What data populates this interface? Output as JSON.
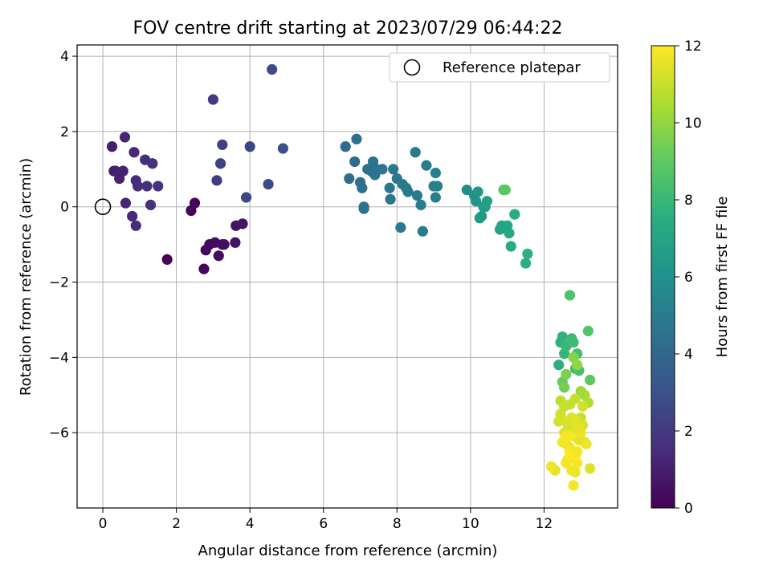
{
  "chart_data": {
    "type": "scatter",
    "title": "FOV centre drift starting at 2023/07/29 06:44:22",
    "xlabel": "Angular distance from reference (arcmin)",
    "ylabel": "Rotation from reference (arcmin)",
    "xlim": [
      -0.7,
      14.0
    ],
    "ylim": [
      -8.0,
      4.3
    ],
    "xticks": [
      0,
      2,
      4,
      6,
      8,
      10,
      12
    ],
    "yticks": [
      -6,
      -4,
      -2,
      0,
      2,
      4
    ],
    "grid": true,
    "legend": {
      "position": "top-right",
      "entries": [
        "Reference platepar"
      ]
    },
    "colorbar": {
      "label": "Hours from first FF file",
      "colormap": "viridis",
      "range": [
        0,
        12
      ],
      "ticks": [
        0,
        2,
        4,
        6,
        8,
        10,
        12
      ]
    },
    "reference_point": {
      "x": 0,
      "y": 0,
      "label": "Reference platepar"
    },
    "series": [
      {
        "x": [
          1.75,
          2.4,
          2.5,
          2.75,
          2.8,
          2.9,
          3.05,
          3.15,
          3.25,
          3.3,
          3.6,
          3.62,
          3.8,
          0.25,
          0.3,
          0.35,
          0.45,
          0.55,
          0.6,
          0.62,
          0.8,
          0.85,
          0.9,
          0.9,
          0.95,
          1.15,
          1.2,
          1.3,
          1.35,
          1.5,
          3.0,
          3.1,
          3.2,
          3.25,
          3.9,
          4.0,
          4.5,
          4.6,
          4.9,
          6.6,
          6.7,
          6.85,
          6.9,
          7.0,
          7.05,
          7.1,
          7.1,
          7.2,
          7.3,
          7.35,
          7.4,
          7.45,
          7.6,
          7.8,
          7.82,
          7.9,
          8.0,
          8.1,
          8.15,
          8.25,
          8.3,
          8.5,
          8.55,
          8.65,
          8.7,
          8.8,
          9.0,
          9.05,
          9.05,
          9.1,
          9.9,
          10.1,
          10.15,
          10.2,
          10.25,
          10.3,
          10.35,
          10.4,
          10.45,
          10.8,
          10.85,
          10.9,
          10.95,
          11.0,
          11.05,
          11.1,
          11.2,
          11.5,
          11.55,
          12.4,
          12.45,
          12.5,
          12.55,
          12.6,
          12.7,
          12.75,
          12.8,
          12.85,
          12.9,
          12.95,
          13.2,
          13.25,
          12.5,
          12.55,
          12.6,
          12.8,
          12.9,
          13.0,
          13.1,
          13.2,
          12.45,
          12.7,
          12.85,
          12.3,
          12.4,
          12.5,
          12.55,
          12.6,
          12.65,
          12.7,
          12.75,
          12.8,
          12.85,
          12.9,
          12.95,
          13.0,
          13.05,
          13.1,
          13.15,
          13.25,
          12.5,
          12.6,
          12.7,
          12.8,
          12.9,
          13.0,
          12.45,
          12.55,
          12.65,
          12.75,
          12.85,
          12.95,
          13.05,
          12.2,
          12.8,
          12.6,
          12.7,
          12.9,
          12.75,
          12.85
        ],
        "y": [
          -1.4,
          -0.1,
          0.1,
          -1.65,
          -1.15,
          -1.0,
          -0.95,
          -1.3,
          -1.0,
          -1.0,
          -0.95,
          -0.5,
          -0.45,
          1.6,
          0.95,
          0.95,
          0.75,
          0.95,
          1.85,
          0.1,
          -0.25,
          1.45,
          0.7,
          -0.5,
          0.55,
          1.25,
          0.55,
          0.05,
          1.15,
          0.55,
          2.85,
          0.7,
          1.15,
          1.65,
          0.25,
          1.6,
          0.6,
          3.65,
          1.55,
          1.6,
          0.75,
          1.2,
          1.8,
          0.65,
          0.5,
          -0.05,
          0.0,
          1.0,
          0.95,
          1.2,
          0.85,
          1.0,
          1.0,
          0.5,
          0.2,
          1.0,
          0.75,
          -0.55,
          0.6,
          0.5,
          0.4,
          1.45,
          0.3,
          0.05,
          -0.65,
          1.1,
          0.55,
          0.9,
          0.25,
          0.55,
          0.45,
          0.3,
          0.15,
          0.4,
          -0.3,
          -0.25,
          0.0,
          0.0,
          0.15,
          -0.6,
          -0.5,
          0.45,
          0.45,
          -0.5,
          -0.7,
          -1.05,
          -0.2,
          -1.5,
          -1.25,
          -4.2,
          -3.6,
          -3.45,
          -3.9,
          -3.7,
          -2.35,
          -3.5,
          -3.6,
          -4.3,
          -3.9,
          -4.35,
          -3.3,
          -4.6,
          -4.65,
          -4.8,
          -4.45,
          -4.0,
          -4.2,
          -4.9,
          -5.0,
          -5.2,
          -5.15,
          -5.25,
          -5.1,
          -7.0,
          -5.7,
          -5.65,
          -6.0,
          -6.3,
          -6.7,
          -6.4,
          -5.9,
          -6.1,
          -6.6,
          -5.9,
          -6.2,
          -5.6,
          -5.8,
          -6.25,
          -6.3,
          -6.95,
          -6.25,
          -6.8,
          -6.5,
          -6.5,
          -6.5,
          -6.0,
          -5.5,
          -5.3,
          -5.8,
          -5.6,
          -5.7,
          -5.9,
          -5.3,
          -6.9,
          -7.4,
          -6.1,
          -6.6,
          -6.8,
          -7.0,
          -7.05
        ],
        "hours": [
          0.05,
          0.1,
          0.15,
          0.2,
          0.25,
          0.3,
          0.35,
          0.4,
          0.45,
          0.5,
          0.55,
          0.6,
          0.65,
          1.0,
          1.05,
          1.1,
          1.15,
          1.2,
          1.25,
          1.3,
          1.35,
          1.4,
          1.45,
          1.5,
          1.55,
          1.6,
          1.65,
          1.7,
          1.75,
          1.8,
          2.1,
          2.2,
          2.3,
          2.4,
          2.5,
          2.6,
          2.7,
          2.8,
          2.9,
          4.2,
          4.3,
          4.3,
          4.35,
          4.4,
          4.4,
          4.45,
          4.5,
          4.5,
          4.55,
          4.6,
          4.6,
          4.65,
          4.7,
          4.7,
          4.75,
          4.8,
          4.8,
          4.85,
          4.9,
          4.9,
          4.95,
          5.0,
          5.0,
          5.05,
          5.1,
          5.1,
          5.15,
          5.2,
          5.2,
          5.25,
          6.0,
          6.1,
          6.2,
          6.3,
          6.4,
          6.5,
          6.6,
          6.7,
          6.8,
          7.0,
          7.1,
          8.8,
          9.0,
          7.2,
          7.3,
          7.4,
          7.5,
          7.6,
          7.7,
          7.6,
          7.7,
          7.8,
          7.9,
          8.0,
          8.6,
          8.1,
          8.2,
          8.3,
          8.4,
          8.5,
          8.8,
          9.0,
          9.2,
          9.4,
          9.6,
          9.8,
          10.0,
          10.2,
          10.4,
          10.6,
          10.8,
          11.0,
          10.9,
          11.6,
          11.2,
          11.3,
          11.4,
          11.5,
          11.6,
          11.7,
          11.8,
          11.9,
          12.0,
          11.4,
          11.6,
          11.1,
          11.3,
          11.5,
          11.7,
          11.4,
          11.8,
          11.9,
          12.0,
          11.9,
          11.8,
          11.7,
          11.2,
          11.0,
          11.3,
          11.4,
          11.5,
          11.6,
          11.2,
          11.7,
          11.8,
          11.9,
          12.0,
          11.9,
          11.8,
          11.7
        ]
      }
    ]
  }
}
